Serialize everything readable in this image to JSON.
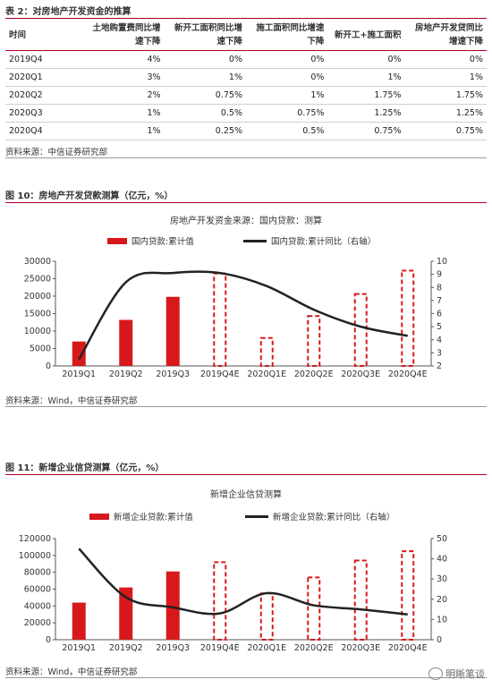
{
  "table": {
    "caption": "表 2：对房地产开发资金的推算",
    "headers": [
      "时间",
      "土地购置费同比增速下降",
      "新开工面积同比增速下降",
      "施工面积同比增速下降",
      "新开工+施工面积",
      "房地产开发贷同比增速下降"
    ],
    "rows": [
      [
        "2019Q4",
        "4%",
        "0%",
        "0%",
        "0%",
        "0%"
      ],
      [
        "2020Q1",
        "3%",
        "1%",
        "0%",
        "1%",
        "1%"
      ],
      [
        "2020Q2",
        "2%",
        "0.75%",
        "1%",
        "1.75%",
        "1.75%"
      ],
      [
        "2020Q3",
        "1%",
        "0.5%",
        "0.75%",
        "1.25%",
        "1.25%"
      ],
      [
        "2020Q4",
        "1%",
        "0.25%",
        "0.5%",
        "0.75%",
        "0.75%"
      ]
    ],
    "source": "资料来源：中信证券研究部"
  },
  "figure1": {
    "caption": "图 10：房地产开发贷款测算（亿元，%）",
    "source": "资料来源：Wind，中信证券研究部"
  },
  "figure2": {
    "caption": "图 11：新增企业信贷测算（亿元，%）",
    "source": "资料来源：Wind，中信证券研究部"
  },
  "watermark": "明晰笔谈",
  "colors": {
    "bar": "#d7191c",
    "line": "#222222",
    "rule": "#b0001e"
  },
  "chart_data": [
    {
      "type": "bar",
      "title": "房地产开发资金来源：国内贷款：测算",
      "categories": [
        "2019Q1",
        "2019Q2",
        "2019Q3",
        "2019Q4E",
        "2020Q1E",
        "2020Q2E",
        "2020Q3E",
        "2020Q4E"
      ],
      "series": [
        {
          "name": "国内贷款:累计值",
          "kind": "bar",
          "axis": "left",
          "values": [
            7000,
            13200,
            19800,
            26500,
            8000,
            14300,
            20600,
            27300
          ],
          "estimated": [
            false,
            false,
            false,
            true,
            true,
            true,
            true,
            true
          ]
        },
        {
          "name": "国内贷款:累计同比（右轴）",
          "kind": "line",
          "axis": "right",
          "values": [
            2.5,
            8.4,
            9.1,
            9.1,
            8.1,
            6.3,
            5.0,
            4.3
          ]
        }
      ],
      "ylim_left": [
        0,
        30000
      ],
      "yticks_left": [
        0,
        5000,
        10000,
        15000,
        20000,
        25000,
        30000
      ],
      "ylim_right": [
        2,
        10
      ],
      "yticks_right": [
        2,
        3,
        4,
        5,
        6,
        7,
        8,
        9,
        10
      ],
      "legend": "top"
    },
    {
      "type": "bar",
      "title": "新增企业信贷测算",
      "categories": [
        "2019Q1",
        "2019Q2",
        "2019Q3",
        "2019Q4E",
        "2020Q1E",
        "2020Q2E",
        "2020Q3E",
        "2020Q4E"
      ],
      "series": [
        {
          "name": "新增企业贷款:累计值",
          "kind": "bar",
          "axis": "left",
          "values": [
            44000,
            62000,
            81000,
            92000,
            55000,
            74000,
            94000,
            105000
          ],
          "estimated": [
            false,
            false,
            false,
            true,
            true,
            true,
            true,
            true
          ]
        },
        {
          "name": "新增企业贷款:累计同比（右轴）",
          "kind": "line",
          "axis": "right",
          "values": [
            45,
            21,
            16,
            13,
            23,
            17,
            15,
            12.5
          ]
        }
      ],
      "ylim_left": [
        0,
        120000
      ],
      "yticks_left": [
        0,
        20000,
        40000,
        60000,
        80000,
        100000,
        120000
      ],
      "ylim_right": [
        0,
        50
      ],
      "yticks_right": [
        0,
        10,
        20,
        30,
        40,
        50
      ],
      "legend": "top"
    }
  ]
}
